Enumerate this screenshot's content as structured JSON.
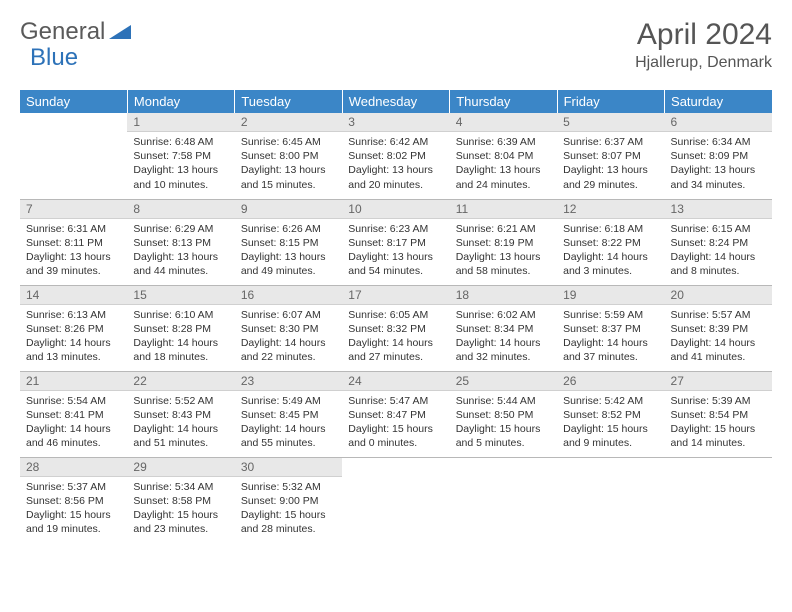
{
  "logo": {
    "part1": "General",
    "part2": "Blue"
  },
  "title": "April 2024",
  "location": "Hjallerup, Denmark",
  "colors": {
    "header_bg": "#3b86c7",
    "header_text": "#ffffff",
    "daynum_bg": "#e8e8e8",
    "daynum_text": "#666666",
    "body_text": "#333333",
    "rule": "#2d72b8"
  },
  "weekdays": [
    "Sunday",
    "Monday",
    "Tuesday",
    "Wednesday",
    "Thursday",
    "Friday",
    "Saturday"
  ],
  "weeks": [
    [
      null,
      {
        "n": "1",
        "sunrise": "6:48 AM",
        "sunset": "7:58 PM",
        "daylight": "13 hours and 10 minutes."
      },
      {
        "n": "2",
        "sunrise": "6:45 AM",
        "sunset": "8:00 PM",
        "daylight": "13 hours and 15 minutes."
      },
      {
        "n": "3",
        "sunrise": "6:42 AM",
        "sunset": "8:02 PM",
        "daylight": "13 hours and 20 minutes."
      },
      {
        "n": "4",
        "sunrise": "6:39 AM",
        "sunset": "8:04 PM",
        "daylight": "13 hours and 24 minutes."
      },
      {
        "n": "5",
        "sunrise": "6:37 AM",
        "sunset": "8:07 PM",
        "daylight": "13 hours and 29 minutes."
      },
      {
        "n": "6",
        "sunrise": "6:34 AM",
        "sunset": "8:09 PM",
        "daylight": "13 hours and 34 minutes."
      }
    ],
    [
      {
        "n": "7",
        "sunrise": "6:31 AM",
        "sunset": "8:11 PM",
        "daylight": "13 hours and 39 minutes."
      },
      {
        "n": "8",
        "sunrise": "6:29 AM",
        "sunset": "8:13 PM",
        "daylight": "13 hours and 44 minutes."
      },
      {
        "n": "9",
        "sunrise": "6:26 AM",
        "sunset": "8:15 PM",
        "daylight": "13 hours and 49 minutes."
      },
      {
        "n": "10",
        "sunrise": "6:23 AM",
        "sunset": "8:17 PM",
        "daylight": "13 hours and 54 minutes."
      },
      {
        "n": "11",
        "sunrise": "6:21 AM",
        "sunset": "8:19 PM",
        "daylight": "13 hours and 58 minutes."
      },
      {
        "n": "12",
        "sunrise": "6:18 AM",
        "sunset": "8:22 PM",
        "daylight": "14 hours and 3 minutes."
      },
      {
        "n": "13",
        "sunrise": "6:15 AM",
        "sunset": "8:24 PM",
        "daylight": "14 hours and 8 minutes."
      }
    ],
    [
      {
        "n": "14",
        "sunrise": "6:13 AM",
        "sunset": "8:26 PM",
        "daylight": "14 hours and 13 minutes."
      },
      {
        "n": "15",
        "sunrise": "6:10 AM",
        "sunset": "8:28 PM",
        "daylight": "14 hours and 18 minutes."
      },
      {
        "n": "16",
        "sunrise": "6:07 AM",
        "sunset": "8:30 PM",
        "daylight": "14 hours and 22 minutes."
      },
      {
        "n": "17",
        "sunrise": "6:05 AM",
        "sunset": "8:32 PM",
        "daylight": "14 hours and 27 minutes."
      },
      {
        "n": "18",
        "sunrise": "6:02 AM",
        "sunset": "8:34 PM",
        "daylight": "14 hours and 32 minutes."
      },
      {
        "n": "19",
        "sunrise": "5:59 AM",
        "sunset": "8:37 PM",
        "daylight": "14 hours and 37 minutes."
      },
      {
        "n": "20",
        "sunrise": "5:57 AM",
        "sunset": "8:39 PM",
        "daylight": "14 hours and 41 minutes."
      }
    ],
    [
      {
        "n": "21",
        "sunrise": "5:54 AM",
        "sunset": "8:41 PM",
        "daylight": "14 hours and 46 minutes."
      },
      {
        "n": "22",
        "sunrise": "5:52 AM",
        "sunset": "8:43 PM",
        "daylight": "14 hours and 51 minutes."
      },
      {
        "n": "23",
        "sunrise": "5:49 AM",
        "sunset": "8:45 PM",
        "daylight": "14 hours and 55 minutes."
      },
      {
        "n": "24",
        "sunrise": "5:47 AM",
        "sunset": "8:47 PM",
        "daylight": "15 hours and 0 minutes."
      },
      {
        "n": "25",
        "sunrise": "5:44 AM",
        "sunset": "8:50 PM",
        "daylight": "15 hours and 5 minutes."
      },
      {
        "n": "26",
        "sunrise": "5:42 AM",
        "sunset": "8:52 PM",
        "daylight": "15 hours and 9 minutes."
      },
      {
        "n": "27",
        "sunrise": "5:39 AM",
        "sunset": "8:54 PM",
        "daylight": "15 hours and 14 minutes."
      }
    ],
    [
      {
        "n": "28",
        "sunrise": "5:37 AM",
        "sunset": "8:56 PM",
        "daylight": "15 hours and 19 minutes."
      },
      {
        "n": "29",
        "sunrise": "5:34 AM",
        "sunset": "8:58 PM",
        "daylight": "15 hours and 23 minutes."
      },
      {
        "n": "30",
        "sunrise": "5:32 AM",
        "sunset": "9:00 PM",
        "daylight": "15 hours and 28 minutes."
      },
      null,
      null,
      null,
      null
    ]
  ],
  "labels": {
    "sunrise": "Sunrise:",
    "sunset": "Sunset:",
    "daylight": "Daylight:"
  }
}
